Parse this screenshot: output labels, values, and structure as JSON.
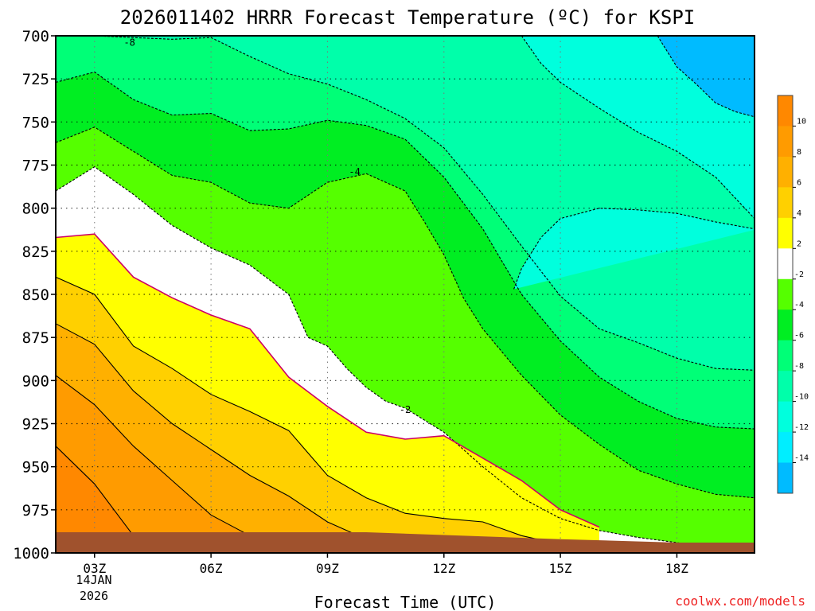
{
  "chart_data": {
    "type": "heatmap",
    "title": "2026011402 HRRR Forecast Temperature (ºC) for KSPI",
    "xlabel": "Forecast Time (UTC)",
    "ylabel": "",
    "x_ticks": [
      {
        "hour": 3,
        "label": "03Z"
      },
      {
        "hour": 6,
        "label": "06Z"
      },
      {
        "hour": 9,
        "label": "09Z"
      },
      {
        "hour": 12,
        "label": "12Z"
      },
      {
        "hour": 15,
        "label": "15Z"
      },
      {
        "hour": 18,
        "label": "18Z"
      }
    ],
    "date_label": [
      "14JAN",
      "2026"
    ],
    "xlim_hours": [
      2,
      20
    ],
    "y_ticks": [
      700,
      725,
      750,
      775,
      800,
      825,
      850,
      875,
      900,
      925,
      950,
      975,
      1000
    ],
    "ylim_hPa": [
      700,
      1000
    ],
    "colorbar": {
      "levels": [
        10,
        8,
        6,
        4,
        2,
        -2,
        -4,
        -6,
        -8,
        -10,
        -12,
        -14
      ],
      "bands": [
        {
          "from": 12,
          "to": 10,
          "color": "#ff8800"
        },
        {
          "from": 10,
          "to": 8,
          "color": "#ff9b00"
        },
        {
          "from": 8,
          "to": 6,
          "color": "#ffb000"
        },
        {
          "from": 6,
          "to": 4,
          "color": "#ffd000"
        },
        {
          "from": 4,
          "to": 2,
          "color": "#ffff00"
        },
        {
          "from": 2,
          "to": -2,
          "color": "#ffffff"
        },
        {
          "from": -2,
          "to": -4,
          "color": "#55ff00"
        },
        {
          "from": -4,
          "to": -6,
          "color": "#00ee22"
        },
        {
          "from": -6,
          "to": -8,
          "color": "#00ff77"
        },
        {
          "from": -8,
          "to": -10,
          "color": "#00ffaa"
        },
        {
          "from": -10,
          "to": -12,
          "color": "#00ffdd"
        },
        {
          "from": -12,
          "to": -14,
          "color": "#00eeff"
        },
        {
          "from": -14,
          "to": -16,
          "color": "#00bbff"
        }
      ]
    },
    "contour_labels": [
      {
        "hour": 3.9,
        "p": 704,
        "text": "-8"
      },
      {
        "hour": 9.7,
        "p": 779,
        "text": "-4"
      },
      {
        "hour": 11.0,
        "p": 917,
        "text": "-2"
      }
    ],
    "contours": [
      {
        "value": -8,
        "style": "dashed",
        "hours": [
          2,
          3,
          4,
          5,
          6,
          7,
          8,
          9,
          10,
          11,
          12,
          13,
          14,
          15,
          16,
          17,
          18,
          19,
          20
        ],
        "p": [
          700,
          700,
          701,
          702,
          701,
          712,
          722,
          728,
          737,
          748,
          765,
          792,
          822,
          851,
          870,
          878,
          887,
          893,
          894
        ]
      },
      {
        "value": -6,
        "style": "dashed",
        "hours": [
          2,
          3,
          4,
          5,
          6,
          7,
          8,
          9,
          10,
          11,
          12,
          13,
          14,
          15,
          16,
          17,
          18,
          19,
          20
        ],
        "p": [
          727,
          721,
          737,
          746,
          745,
          755,
          754,
          749,
          752,
          760,
          782,
          812,
          850,
          877,
          898,
          912,
          922,
          927,
          928
        ]
      },
      {
        "value": -4,
        "style": "dashed",
        "hours": [
          2,
          3,
          4,
          5,
          6,
          7,
          8,
          9,
          10,
          11,
          11.5,
          12,
          12.5,
          13,
          14,
          15,
          16,
          17,
          18,
          19,
          20
        ],
        "p": [
          762,
          753,
          767,
          781,
          785,
          797,
          800,
          785,
          780,
          790,
          808,
          827,
          852,
          870,
          897,
          920,
          937,
          952,
          960,
          966,
          968
        ]
      },
      {
        "value": -2,
        "style": "dashed",
        "hours": [
          2,
          3,
          4,
          5,
          6,
          7,
          8,
          8.5,
          9,
          9.5,
          10,
          10.5,
          11,
          12,
          13,
          14,
          15,
          16,
          17,
          18,
          19,
          20
        ],
        "p": [
          790,
          776,
          792,
          810,
          823,
          833,
          850,
          875,
          880,
          893,
          904,
          912,
          916,
          930,
          950,
          968,
          980,
          987,
          991,
          994,
          998,
          999
        ]
      },
      {
        "value": 2,
        "style": "solid",
        "hours": [
          2,
          3,
          4,
          5,
          6,
          7,
          8,
          9,
          10,
          11,
          12,
          13,
          14,
          15,
          16
        ],
        "p": [
          817,
          815,
          840,
          852,
          862,
          870,
          898,
          915,
          930,
          934,
          932,
          945,
          958,
          975,
          985
        ]
      },
      {
        "value": 4,
        "style": "solid",
        "hours": [
          2,
          3,
          4,
          5,
          6,
          7,
          8,
          9,
          10,
          11,
          12,
          13,
          14,
          15
        ],
        "p": [
          840,
          850,
          880,
          893,
          908,
          918,
          929,
          955,
          968,
          977,
          980,
          982,
          990,
          995
        ]
      },
      {
        "value": 6,
        "style": "solid",
        "hours": [
          2,
          3,
          4,
          5,
          6,
          7,
          8,
          9,
          10,
          11,
          12,
          13,
          14
        ],
        "p": [
          867,
          879,
          906,
          925,
          940,
          955,
          967,
          982,
          992,
          996,
          998,
          999,
          1000
        ]
      },
      {
        "value": 8,
        "style": "solid",
        "hours": [
          2,
          3,
          4,
          5,
          6,
          7,
          8,
          9,
          10
        ],
        "p": [
          897,
          914,
          938,
          958,
          978,
          990,
          997,
          1000,
          1000
        ]
      },
      {
        "value": 10,
        "style": "solid",
        "hours": [
          2,
          3,
          4,
          5,
          6,
          7,
          8
        ],
        "p": [
          938,
          960,
          990,
          998,
          1000,
          1000,
          1000
        ]
      },
      {
        "value": -10,
        "style": "dashed",
        "hours": [
          13.8,
          14,
          14.5,
          15,
          16,
          17,
          18,
          19,
          20
        ],
        "p": [
          847,
          835,
          817,
          806,
          800,
          801,
          803,
          808,
          812
        ]
      },
      {
        "value": -12,
        "style": "dashed",
        "hours": [
          14,
          14.5,
          15,
          16,
          17,
          18,
          19,
          20
        ],
        "p": [
          700,
          716,
          727,
          742,
          756,
          767,
          782,
          806
        ]
      },
      {
        "value": -14,
        "style": "dashed",
        "hours": [
          17.5,
          18,
          18.5,
          19,
          19.5,
          20
        ],
        "p": [
          700,
          718,
          728,
          739,
          744,
          747
        ]
      }
    ],
    "ground": [
      {
        "hour": 2,
        "p": 988
      },
      {
        "hour": 10,
        "p": 988
      },
      {
        "hour": 15,
        "p": 992
      },
      {
        "hour": 18,
        "p": 994
      },
      {
        "hour": 20,
        "p": 997
      }
    ]
  },
  "credit": "coolwx.com/models",
  "colors": {
    "ground": "#a0522d",
    "freezing_line": "#cc0066",
    "credit": "#ee2222"
  }
}
